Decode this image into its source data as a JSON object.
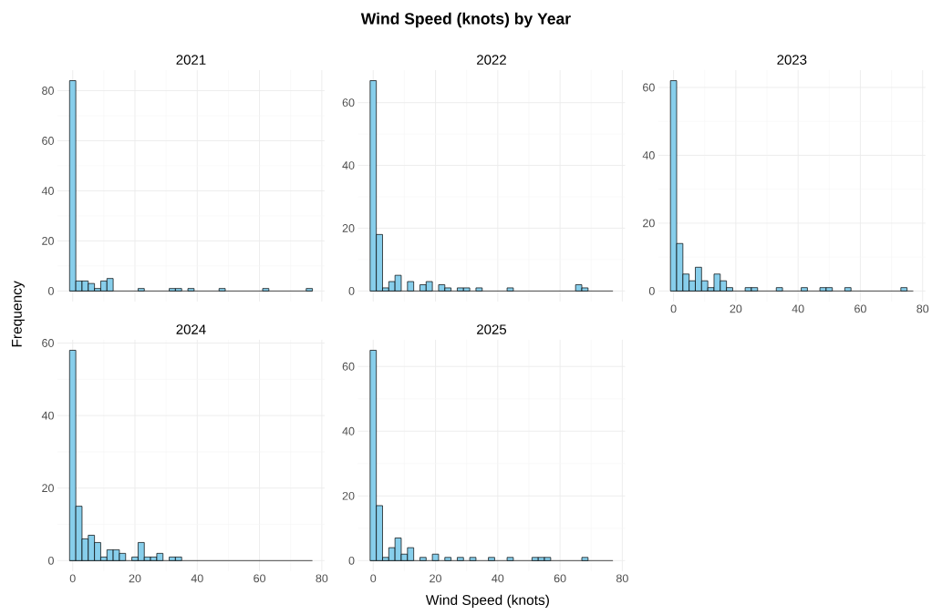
{
  "chart_data": [
    {
      "type": "histogram",
      "subtitle": "2021",
      "ylabel": "Frequency",
      "color": "#87ceeb",
      "bins": [
        -1,
        1,
        3,
        5,
        7,
        9,
        11,
        13,
        15,
        17,
        19,
        21,
        23,
        25,
        27,
        29,
        31,
        33,
        35,
        37,
        39,
        41,
        43,
        45,
        47,
        49,
        51,
        53,
        55,
        57,
        59,
        61,
        63,
        65,
        67,
        69,
        71,
        73,
        75,
        77
      ],
      "values": [
        84,
        4,
        4,
        3,
        1,
        4,
        5,
        0,
        0,
        0,
        0,
        1,
        0,
        0,
        0,
        0,
        1,
        1,
        0,
        1,
        0,
        0,
        0,
        0,
        1,
        0,
        0,
        0,
        0,
        0,
        0,
        1,
        0,
        0,
        0,
        0,
        0,
        0,
        1
      ],
      "xlim": [
        -4.9,
        80.9
      ],
      "ylim": [
        -4.2,
        88.2
      ],
      "xticks": [
        0,
        20,
        40,
        60,
        80
      ],
      "yticks": [
        0,
        20,
        40,
        60,
        80
      ],
      "grid": true,
      "tick_labels": "y"
    },
    {
      "type": "histogram",
      "title": "Wind Speed (knots) by Year",
      "subtitle": "2022",
      "color": "#87ceeb",
      "bins": [
        -1,
        1,
        3,
        5,
        7,
        9,
        11,
        13,
        15,
        17,
        19,
        21,
        23,
        25,
        27,
        29,
        31,
        33,
        35,
        37,
        39,
        41,
        43,
        45,
        47,
        49,
        51,
        53,
        55,
        57,
        59,
        61,
        63,
        65,
        67,
        69,
        71,
        73,
        75,
        77
      ],
      "values": [
        67,
        18,
        1,
        3,
        5,
        0,
        3,
        0,
        2,
        3,
        0,
        2,
        1,
        0,
        1,
        1,
        0,
        1,
        0,
        0,
        0,
        0,
        1,
        0,
        0,
        0,
        0,
        0,
        0,
        0,
        0,
        0,
        0,
        2,
        1,
        0,
        0,
        0,
        0
      ],
      "xlim": [
        -4.9,
        80.9
      ],
      "ylim": [
        -3.35,
        70.35
      ],
      "xticks": [
        0,
        20,
        40,
        60,
        80
      ],
      "yticks": [
        0,
        20,
        40,
        60
      ],
      "grid": true,
      "tick_labels": "y"
    },
    {
      "type": "histogram",
      "subtitle": "2023",
      "color": "#87ceeb",
      "bins": [
        -1,
        1,
        3,
        5,
        7,
        9,
        11,
        13,
        15,
        17,
        19,
        21,
        23,
        25,
        27,
        29,
        31,
        33,
        35,
        37,
        39,
        41,
        43,
        45,
        47,
        49,
        51,
        53,
        55,
        57,
        59,
        61,
        63,
        65,
        67,
        69,
        71,
        73,
        75,
        77
      ],
      "values": [
        62,
        14,
        5,
        3,
        7,
        3,
        1,
        5,
        3,
        1,
        0,
        0,
        1,
        1,
        0,
        0,
        0,
        1,
        0,
        0,
        0,
        1,
        0,
        0,
        1,
        1,
        0,
        0,
        1,
        0,
        0,
        0,
        0,
        0,
        0,
        0,
        0,
        1,
        0
      ],
      "xlim": [
        -4.9,
        80.9
      ],
      "ylim": [
        -3.1,
        65.1
      ],
      "xticks": [
        0,
        20,
        40,
        60,
        80
      ],
      "yticks": [
        0,
        20,
        40,
        60
      ],
      "grid": true
    },
    {
      "type": "histogram",
      "subtitle": "2024",
      "color": "#87ceeb",
      "bins": [
        -1,
        1,
        3,
        5,
        7,
        9,
        11,
        13,
        15,
        17,
        19,
        21,
        23,
        25,
        27,
        29,
        31,
        33,
        35,
        37,
        39,
        41,
        43,
        45,
        47,
        49,
        51,
        53,
        55,
        57,
        59,
        61,
        63,
        65,
        67,
        69,
        71,
        73,
        75,
        77
      ],
      "values": [
        58,
        15,
        6,
        7,
        5,
        1,
        3,
        3,
        2,
        0,
        1,
        5,
        1,
        1,
        2,
        0,
        1,
        1,
        0,
        0,
        0,
        0,
        0,
        0,
        0,
        0,
        0,
        0,
        0,
        0,
        0,
        0,
        0,
        0,
        0,
        0,
        0,
        0,
        0
      ],
      "xlim": [
        -4.9,
        80.9
      ],
      "ylim": [
        -2.9,
        60.9
      ],
      "xticks": [
        0,
        20,
        40,
        60,
        80
      ],
      "yticks": [
        0,
        20,
        40,
        60
      ],
      "grid": true
    },
    {
      "type": "histogram",
      "subtitle": "2025",
      "xlabel": "Wind Speed (knots)",
      "color": "#87ceeb",
      "bins": [
        -1,
        1,
        3,
        5,
        7,
        9,
        11,
        13,
        15,
        17,
        19,
        21,
        23,
        25,
        27,
        29,
        31,
        33,
        35,
        37,
        39,
        41,
        43,
        45,
        47,
        49,
        51,
        53,
        55,
        57,
        59,
        61,
        63,
        65,
        67,
        69,
        71,
        73,
        75,
        77
      ],
      "values": [
        65,
        17,
        1,
        4,
        7,
        2,
        4,
        0,
        1,
        0,
        2,
        0,
        1,
        0,
        1,
        0,
        1,
        0,
        0,
        1,
        0,
        0,
        1,
        0,
        0,
        0,
        1,
        1,
        1,
        0,
        0,
        0,
        0,
        0,
        1,
        0,
        0,
        0,
        0
      ],
      "xlim": [
        -4.9,
        80.9
      ],
      "ylim": [
        -3.25,
        68.25
      ],
      "xticks": [
        0,
        20,
        40,
        60,
        80
      ],
      "yticks": [
        0,
        20,
        40,
        60
      ],
      "grid": true
    }
  ]
}
